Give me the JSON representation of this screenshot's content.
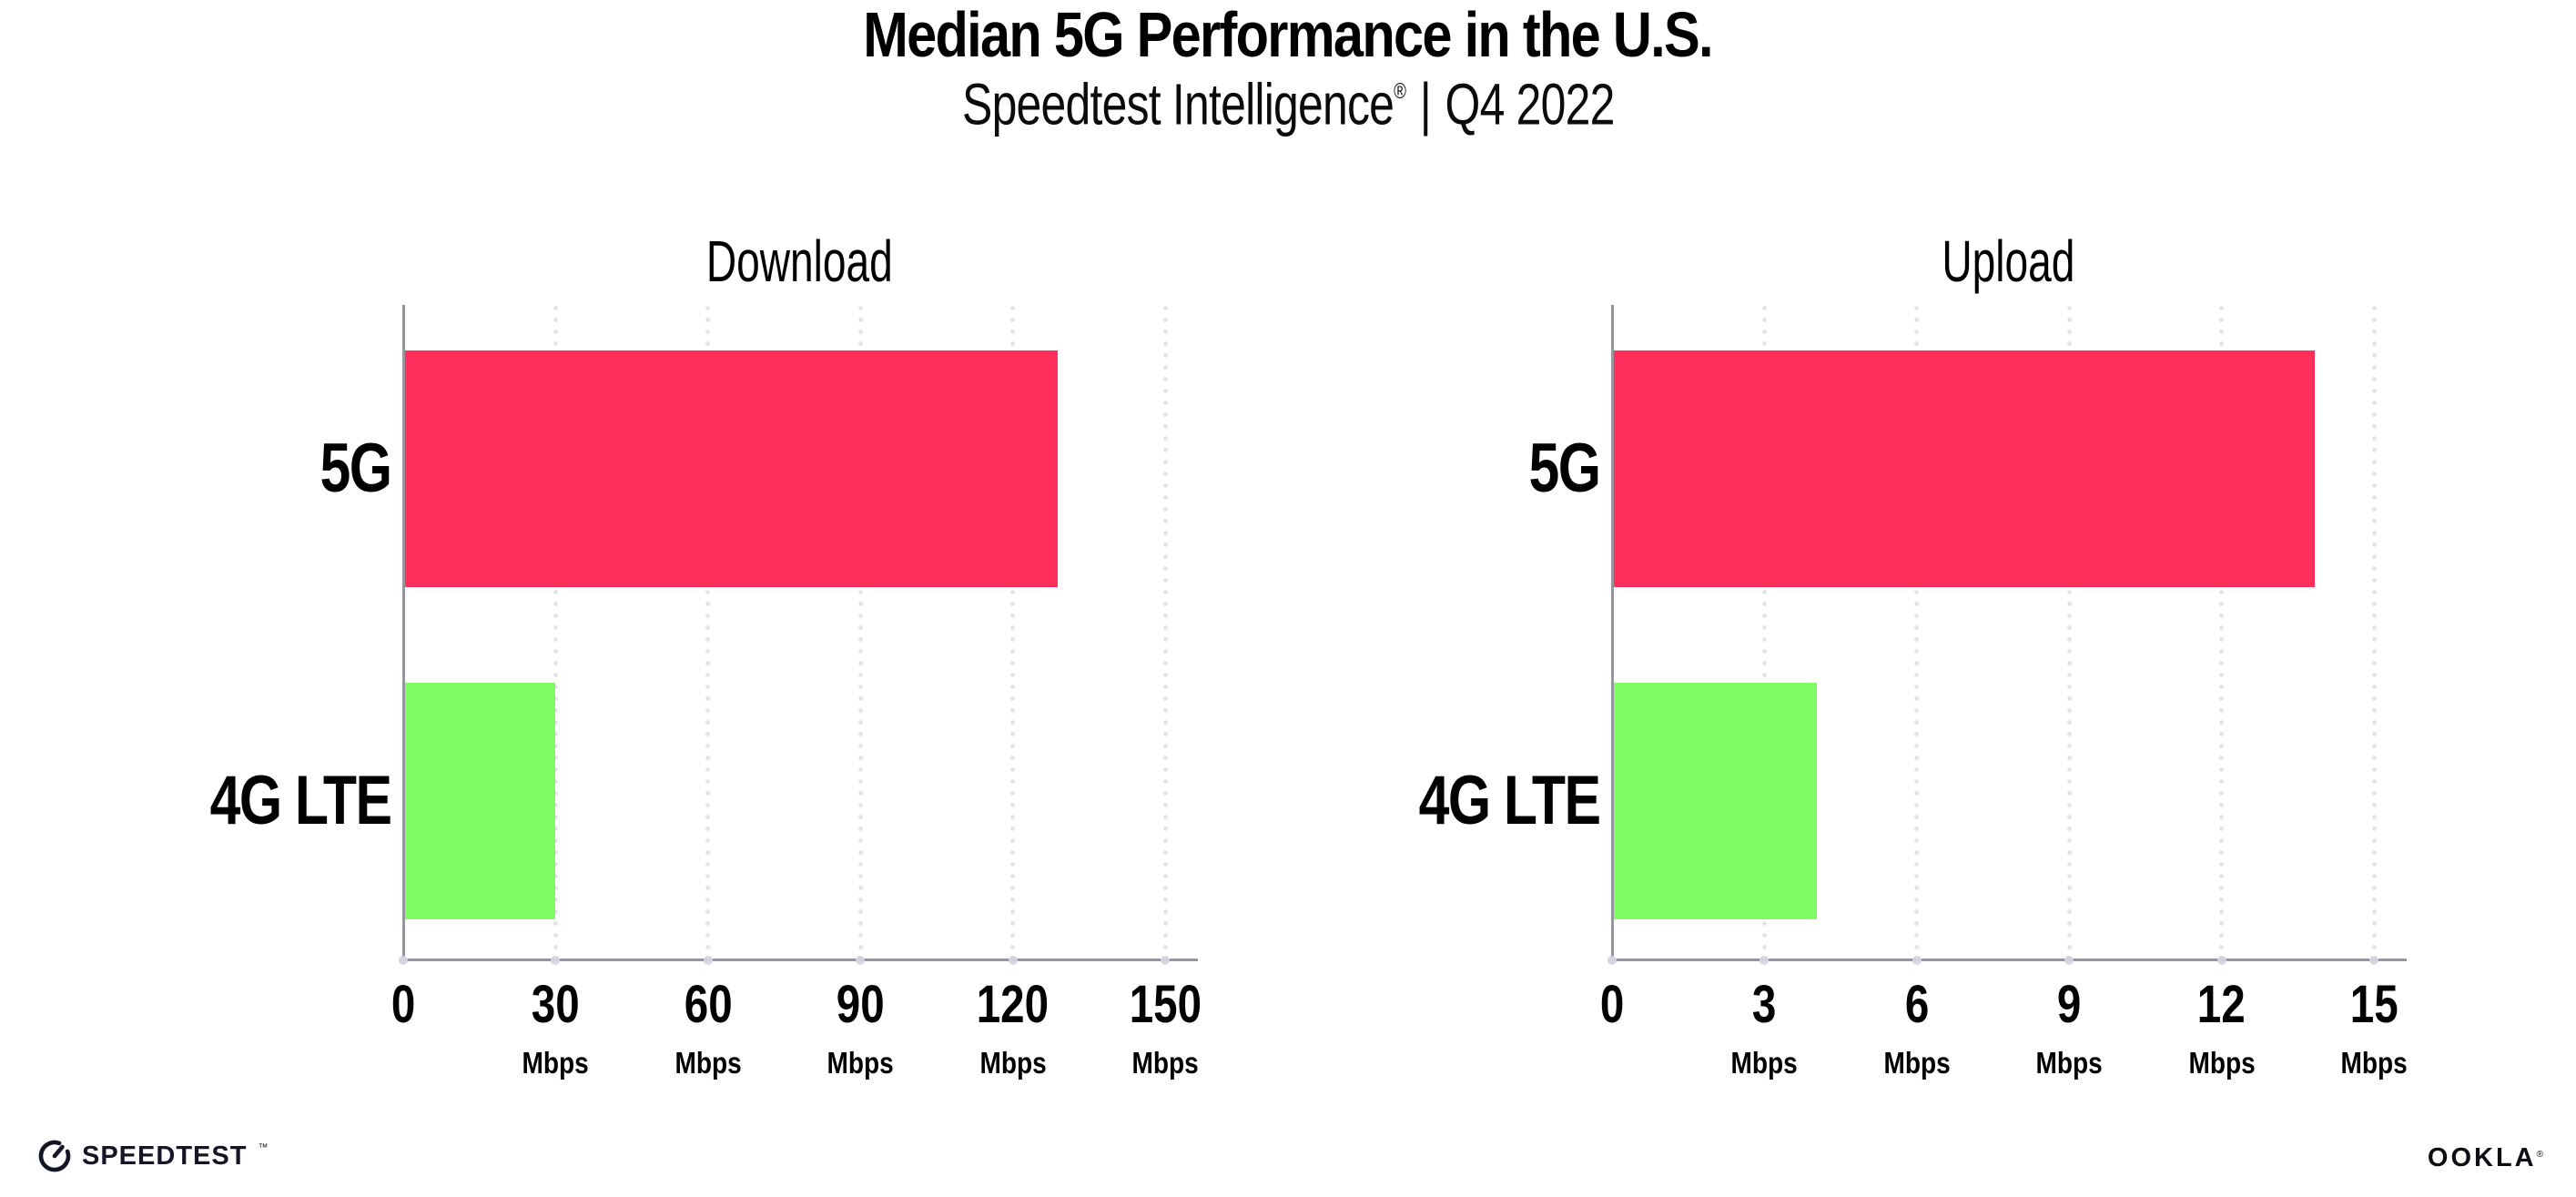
{
  "header": {
    "title": "Median 5G Performance in the U.S.",
    "subtitle": {
      "brand": "Speedtest Intelligence",
      "registered_mark": "®",
      "separator": "|",
      "period": "Q4 2022"
    }
  },
  "colors": {
    "bar_5g": "#FF2E5B",
    "bar_4g_lte": "#80FB64",
    "axis_line": "#96959E",
    "grid_dots": "#E3E2EC",
    "axis_tick_dots": "#D5D4E0",
    "text": "#000000"
  },
  "chart_data": [
    {
      "type": "bar",
      "orientation": "horizontal",
      "title": "Download",
      "categories": [
        "5G",
        "4G LTE"
      ],
      "values": [
        128.5,
        29.6
      ],
      "bar_colors": [
        "#FF2E5B",
        "#80FB64"
      ],
      "unit": "Mbps",
      "xticks": [
        0,
        30,
        60,
        90,
        120,
        150
      ],
      "tick_unit_label": "Mbps",
      "xlim": [
        0,
        156
      ],
      "grid": "dotted-vertical",
      "legend": "none"
    },
    {
      "type": "bar",
      "orientation": "horizontal",
      "title": "Upload",
      "categories": [
        "5G",
        "4G LTE"
      ],
      "values": [
        13.8,
        4.0
      ],
      "bar_colors": [
        "#FF2E5B",
        "#80FB64"
      ],
      "unit": "Mbps",
      "xticks": [
        0,
        3,
        6,
        9,
        12,
        15
      ],
      "tick_unit_label": "Mbps",
      "xlim": [
        0,
        15.6
      ],
      "grid": "dotted-vertical",
      "legend": "none"
    }
  ],
  "footer": {
    "speedtest_wordmark": "SPEEDTEST",
    "speedtest_tm": "™",
    "ookla_wordmark": "OOKLA",
    "ookla_reg": "®"
  }
}
